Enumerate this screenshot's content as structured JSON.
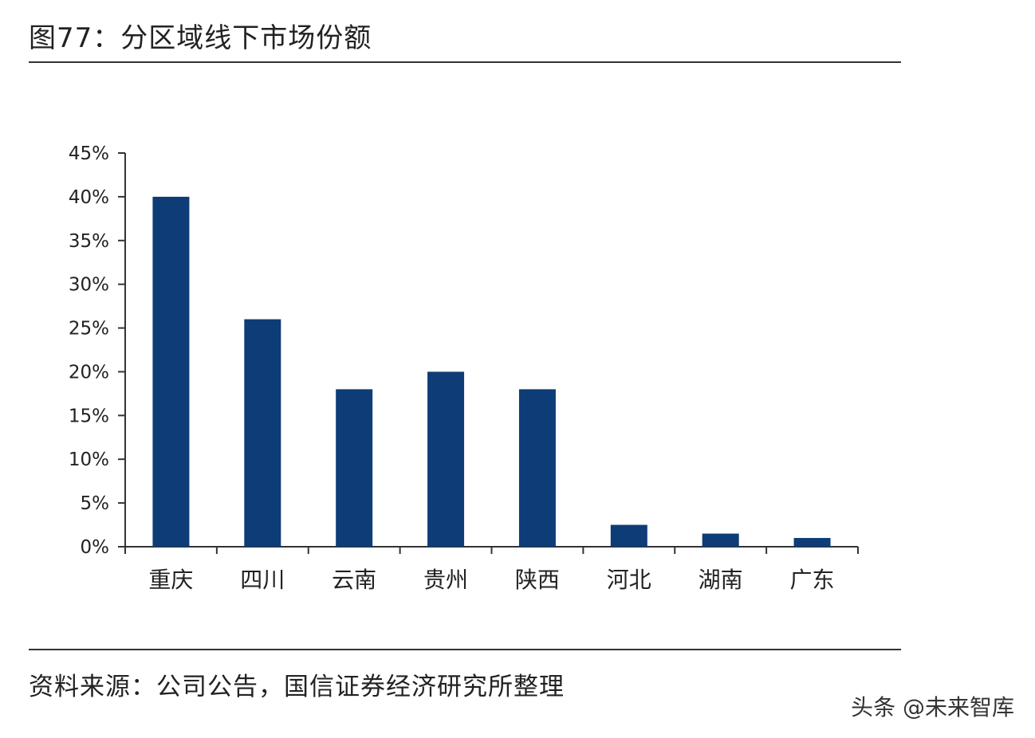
{
  "figure": {
    "title": "图77：分区域线下市场份额",
    "source": "资料来源：公司公告，国信证券经济研究所整理",
    "watermark": "头条 @未来智库"
  },
  "colors": {
    "bar": "#0e3c76",
    "axis": "#333333",
    "text": "#222222"
  },
  "chart_data": {
    "type": "bar",
    "categories": [
      "重庆",
      "四川",
      "云南",
      "贵州",
      "陕西",
      "河北",
      "湖南",
      "广东"
    ],
    "values": [
      40,
      26,
      18,
      20,
      18,
      2.5,
      1.5,
      1
    ],
    "ylim": [
      0,
      45
    ],
    "yticks": [
      0,
      5,
      10,
      15,
      20,
      25,
      30,
      35,
      40,
      45
    ],
    "ytick_labels": [
      "0%",
      "5%",
      "10%",
      "15%",
      "20%",
      "25%",
      "30%",
      "35%",
      "40%",
      "45%"
    ],
    "grid": false,
    "legend": "none"
  }
}
